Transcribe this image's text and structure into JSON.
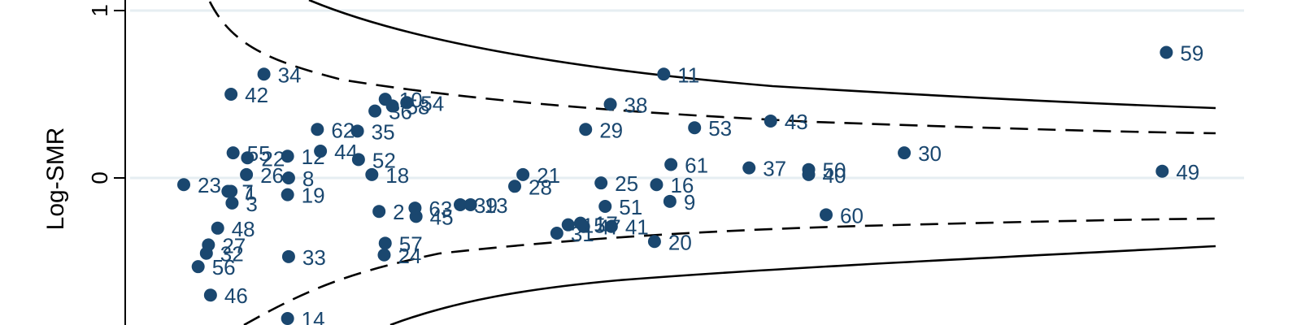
{
  "chart_data": {
    "type": "scatter",
    "title": "",
    "xlabel": "",
    "ylabel": "Log-SMR",
    "ylim": [
      -0.85,
      1.06
    ],
    "xlim": [
      0,
      1
    ],
    "yticks": [
      0,
      1
    ],
    "ytick_labels": [
      "0",
      "1"
    ],
    "grid": true,
    "point_color": "#1a476f",
    "points": [
      {
        "label": "1",
        "x": 0.046,
        "y": -0.08
      },
      {
        "label": "2",
        "x": 0.19,
        "y": -0.2
      },
      {
        "label": "3",
        "x": 0.047,
        "y": -0.15
      },
      {
        "label": "7",
        "x": 0.043,
        "y": -0.08
      },
      {
        "label": "8",
        "x": 0.102,
        "y": 0.0
      },
      {
        "label": "9",
        "x": 0.473,
        "y": -0.14
      },
      {
        "label": "10",
        "x": 0.196,
        "y": 0.47
      },
      {
        "label": "11",
        "x": 0.467,
        "y": 0.62
      },
      {
        "label": "12",
        "x": 0.101,
        "y": 0.13
      },
      {
        "label": "13",
        "x": 0.279,
        "y": -0.16
      },
      {
        "label": "14",
        "x": 0.101,
        "y": -0.84
      },
      {
        "label": "15",
        "x": 0.374,
        "y": -0.28
      },
      {
        "label": "16",
        "x": 0.46,
        "y": -0.04
      },
      {
        "label": "17",
        "x": 0.386,
        "y": -0.27
      },
      {
        "label": "18",
        "x": 0.183,
        "y": 0.02
      },
      {
        "label": "19",
        "x": 0.101,
        "y": -0.1
      },
      {
        "label": "20",
        "x": 0.458,
        "y": -0.38
      },
      {
        "label": "21",
        "x": 0.33,
        "y": 0.02
      },
      {
        "label": "22",
        "x": 0.062,
        "y": 0.12
      },
      {
        "label": "23",
        "x": 0.0,
        "y": -0.04
      },
      {
        "label": "24",
        "x": 0.195,
        "y": -0.46
      },
      {
        "label": "25",
        "x": 0.406,
        "y": -0.03
      },
      {
        "label": "26",
        "x": 0.061,
        "y": 0.02
      },
      {
        "label": "27",
        "x": 0.024,
        "y": -0.4
      },
      {
        "label": "28",
        "x": 0.322,
        "y": -0.05
      },
      {
        "label": "29",
        "x": 0.391,
        "y": 0.29
      },
      {
        "label": "30",
        "x": 0.701,
        "y": 0.15
      },
      {
        "label": "31",
        "x": 0.363,
        "y": -0.33
      },
      {
        "label": "32",
        "x": 0.022,
        "y": -0.45
      },
      {
        "label": "33",
        "x": 0.102,
        "y": -0.47
      },
      {
        "label": "34",
        "x": 0.078,
        "y": 0.62
      },
      {
        "label": "35",
        "x": 0.169,
        "y": 0.28
      },
      {
        "label": "36",
        "x": 0.186,
        "y": 0.4
      },
      {
        "label": "37",
        "x": 0.55,
        "y": 0.06
      },
      {
        "label": "38",
        "x": 0.415,
        "y": 0.44
      },
      {
        "label": "39",
        "x": 0.269,
        "y": -0.16
      },
      {
        "label": "40",
        "x": 0.608,
        "y": 0.02
      },
      {
        "label": "41",
        "x": 0.416,
        "y": -0.29
      },
      {
        "label": "42",
        "x": 0.046,
        "y": 0.5
      },
      {
        "label": "43",
        "x": 0.571,
        "y": 0.34
      },
      {
        "label": "44",
        "x": 0.133,
        "y": 0.16
      },
      {
        "label": "45",
        "x": 0.226,
        "y": -0.23
      },
      {
        "label": "46",
        "x": 0.026,
        "y": -0.7
      },
      {
        "label": "47",
        "x": 0.389,
        "y": -0.29
      },
      {
        "label": "48",
        "x": 0.033,
        "y": -0.3
      },
      {
        "label": "49",
        "x": 0.952,
        "y": 0.04
      },
      {
        "label": "50",
        "x": 0.608,
        "y": 0.05
      },
      {
        "label": "51",
        "x": 0.41,
        "y": -0.17
      },
      {
        "label": "52",
        "x": 0.17,
        "y": 0.11
      },
      {
        "label": "53",
        "x": 0.497,
        "y": 0.3
      },
      {
        "label": "54",
        "x": 0.217,
        "y": 0.45
      },
      {
        "label": "55",
        "x": 0.048,
        "y": 0.15
      },
      {
        "label": "56",
        "x": 0.014,
        "y": -0.53
      },
      {
        "label": "57",
        "x": 0.196,
        "y": -0.39
      },
      {
        "label": "58",
        "x": 0.203,
        "y": 0.43
      },
      {
        "label": "59",
        "x": 0.956,
        "y": 0.75
      },
      {
        "label": "60",
        "x": 0.625,
        "y": -0.22
      },
      {
        "label": "61",
        "x": 0.474,
        "y": 0.08
      },
      {
        "label": "62",
        "x": 0.13,
        "y": 0.29
      },
      {
        "label": "63",
        "x": 0.225,
        "y": -0.18
      }
    ]
  }
}
